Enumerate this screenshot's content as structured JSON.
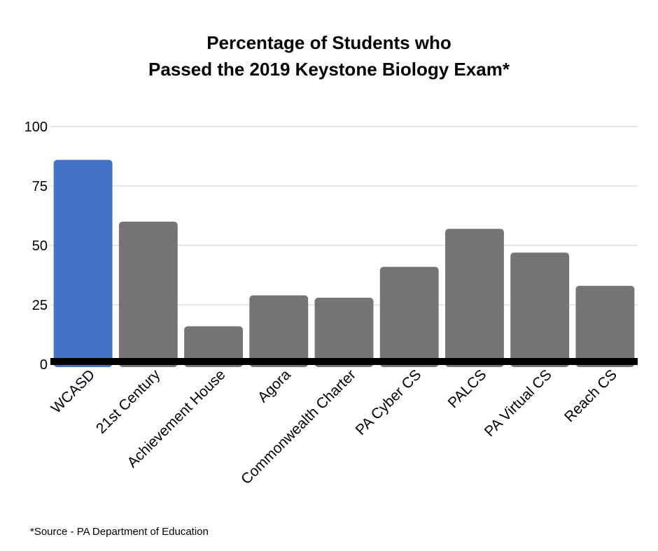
{
  "title_lines": [
    "Percentage of Students who",
    "Passed the 2019 Keystone Biology Exam*"
  ],
  "footnote": "*Source - PA Department of Education",
  "chart_data": {
    "type": "bar",
    "title": "Percentage of Students who Passed the 2019 Keystone Biology Exam*",
    "xlabel": "",
    "ylabel": "",
    "ylim": [
      0,
      100
    ],
    "yticks": [
      0,
      25,
      50,
      75,
      100
    ],
    "grid": true,
    "categories": [
      "WCASD",
      "21st Century",
      "Achievement House",
      "Agora",
      "Commonwealth Charter",
      "PA Cyber CS",
      "PALCS",
      "PA Virtual CS",
      "Reach CS"
    ],
    "values": [
      86,
      60,
      16,
      29,
      28,
      41,
      57,
      47,
      33
    ],
    "highlight_color": "#4472c4",
    "bar_color": "#757575",
    "highlight_index": 0
  }
}
